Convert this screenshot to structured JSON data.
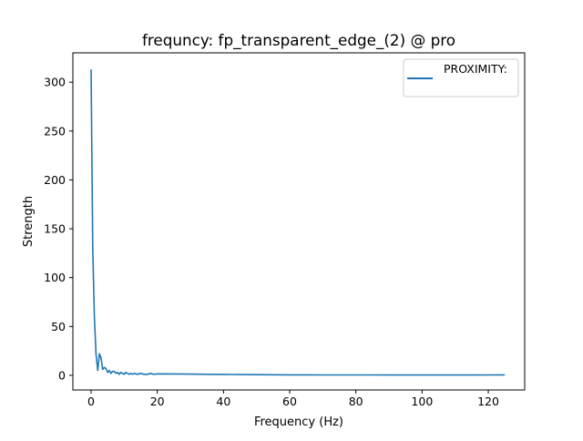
{
  "chart_data": {
    "type": "line",
    "title": "frequncy: fp_transparent_edge_(2) @ pro",
    "xlabel": "Frequency (Hz)",
    "ylabel": "Strength",
    "xlim": [
      -5.5,
      131
    ],
    "ylim": [
      -15,
      330
    ],
    "xticks": [
      0,
      20,
      40,
      60,
      80,
      100,
      120
    ],
    "xtick_labels": [
      "0",
      "20",
      "40",
      "60",
      "80",
      "100",
      "120"
    ],
    "yticks": [
      0,
      50,
      100,
      150,
      200,
      250,
      300
    ],
    "ytick_labels": [
      "0",
      "50",
      "100",
      "150",
      "200",
      "250",
      "300"
    ],
    "grid": false,
    "legend_position": "upper right",
    "colors": {
      "series": "#1f77b4"
    },
    "series": [
      {
        "name": "PROXIMITY:",
        "x": [
          0,
          0.5,
          1.0,
          1.5,
          2.0,
          2.5,
          3.0,
          3.5,
          4.0,
          4.5,
          5.0,
          5.5,
          6.0,
          6.5,
          7.0,
          7.5,
          8.0,
          8.5,
          9.0,
          9.5,
          10.0,
          10.5,
          11.0,
          11.5,
          12.0,
          12.5,
          13.0,
          14.0,
          15.0,
          16.0,
          17.0,
          18.0,
          19.0,
          20,
          25,
          30,
          35,
          40,
          45,
          50,
          55,
          60,
          65,
          70,
          75,
          80,
          85,
          90,
          95,
          100,
          105,
          110,
          115,
          120,
          125
        ],
        "y": [
          313,
          130,
          60,
          22,
          5,
          22,
          18,
          6,
          8,
          7,
          3,
          5,
          2,
          4,
          4,
          2,
          3,
          1,
          3,
          2,
          1,
          3,
          2,
          1,
          2,
          1,
          2,
          1,
          2,
          1,
          1,
          2,
          1,
          1.5,
          1.4,
          1.2,
          1.0,
          0.9,
          0.8,
          0.7,
          0.6,
          0.5,
          0.5,
          0.4,
          0.4,
          0.4,
          0.4,
          0.3,
          0.3,
          0.3,
          0.3,
          0.3,
          0.3,
          0.4,
          0.5
        ]
      }
    ]
  }
}
